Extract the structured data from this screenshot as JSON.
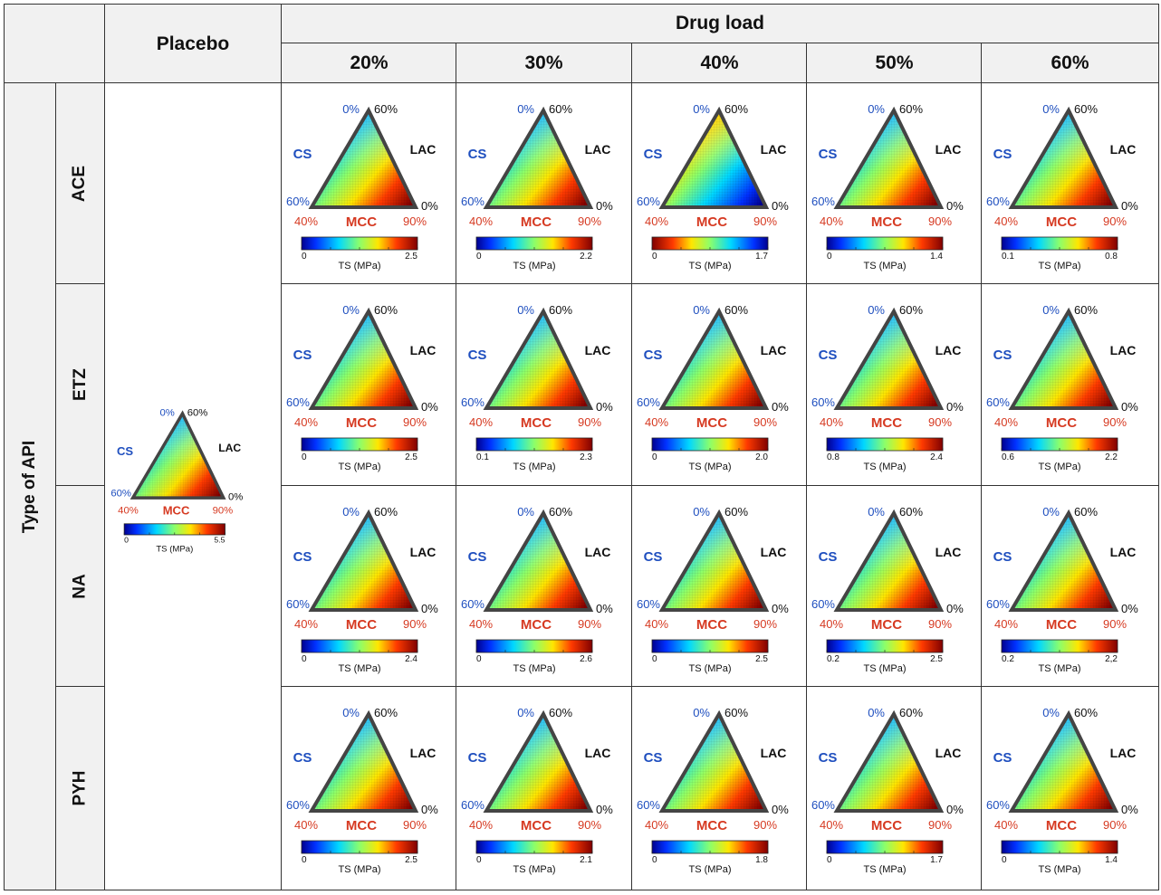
{
  "header": {
    "corner": "",
    "placebo": "Placebo",
    "drug_load": "Drug load",
    "loads": [
      "20%",
      "30%",
      "40%",
      "50%",
      "60%"
    ],
    "type_of_api": "Type of API",
    "apis": [
      "ACE",
      "ETZ",
      "NA",
      "PYH"
    ]
  },
  "colors": {
    "cs_blue": "#1f4fbf",
    "mcc_red": "#d63a22",
    "lac_black": "#111111",
    "header_bg": "#f1f1f1"
  },
  "chart_data": [
    {
      "type": "heatmap",
      "subtype": "ternary",
      "title": "Placebo",
      "axes": {
        "top_labels": [
          "0%",
          "60%"
        ],
        "left_label": "CS",
        "right_label": "LAC",
        "left_vertex": "60%",
        "right_vertex": "0%",
        "bottom_labels": [
          "40%",
          "MCC",
          "90%"
        ]
      },
      "colorbar": {
        "label": "TS (MPa)",
        "min": "0",
        "max": "5.5",
        "colormap": "jet"
      },
      "cells": [
        {
          "api": "ACE",
          "load": "20%",
          "cmin": "0",
          "cmax": "2.5",
          "colormap": "jet"
        },
        {
          "api": "ACE",
          "load": "30%",
          "cmin": "0",
          "cmax": "2.2",
          "colormap": "jet"
        },
        {
          "api": "ACE",
          "load": "40%",
          "cmin": "0",
          "cmax": "1.7",
          "colormap": "jet_reversed"
        },
        {
          "api": "ACE",
          "load": "50%",
          "cmin": "0",
          "cmax": "1.4",
          "colormap": "jet"
        },
        {
          "api": "ACE",
          "load": "60%",
          "cmin": "0.1",
          "cmax": "0.8",
          "colormap": "jet"
        },
        {
          "api": "ETZ",
          "load": "20%",
          "cmin": "0",
          "cmax": "2.5",
          "colormap": "jet"
        },
        {
          "api": "ETZ",
          "load": "30%",
          "cmin": "0.1",
          "cmax": "2.3",
          "colormap": "jet"
        },
        {
          "api": "ETZ",
          "load": "40%",
          "cmin": "0",
          "cmax": "2.0",
          "colormap": "jet"
        },
        {
          "api": "ETZ",
          "load": "50%",
          "cmin": "0.8",
          "cmax": "2.4",
          "colormap": "jet"
        },
        {
          "api": "ETZ",
          "load": "60%",
          "cmin": "0.6",
          "cmax": "2.2",
          "colormap": "jet"
        },
        {
          "api": "NA",
          "load": "20%",
          "cmin": "0",
          "cmax": "2.4",
          "colormap": "jet"
        },
        {
          "api": "NA",
          "load": "30%",
          "cmin": "0",
          "cmax": "2.6",
          "colormap": "jet"
        },
        {
          "api": "NA",
          "load": "40%",
          "cmin": "0",
          "cmax": "2.5",
          "colormap": "jet"
        },
        {
          "api": "NA",
          "load": "50%",
          "cmin": "0.2",
          "cmax": "2.5",
          "colormap": "jet"
        },
        {
          "api": "NA",
          "load": "60%",
          "cmin": "0.2",
          "cmax": "2,2",
          "colormap": "jet"
        },
        {
          "api": "PYH",
          "load": "20%",
          "cmin": "0",
          "cmax": "2.5",
          "colormap": "jet"
        },
        {
          "api": "PYH",
          "load": "30%",
          "cmin": "0",
          "cmax": "2.1",
          "colormap": "jet"
        },
        {
          "api": "PYH",
          "load": "40%",
          "cmin": "0",
          "cmax": "1.8",
          "colormap": "jet"
        },
        {
          "api": "PYH",
          "load": "50%",
          "cmin": "0",
          "cmax": "1.7",
          "colormap": "jet"
        },
        {
          "api": "PYH",
          "load": "60%",
          "cmin": "0",
          "cmax": "1.4",
          "colormap": "jet"
        }
      ]
    }
  ]
}
